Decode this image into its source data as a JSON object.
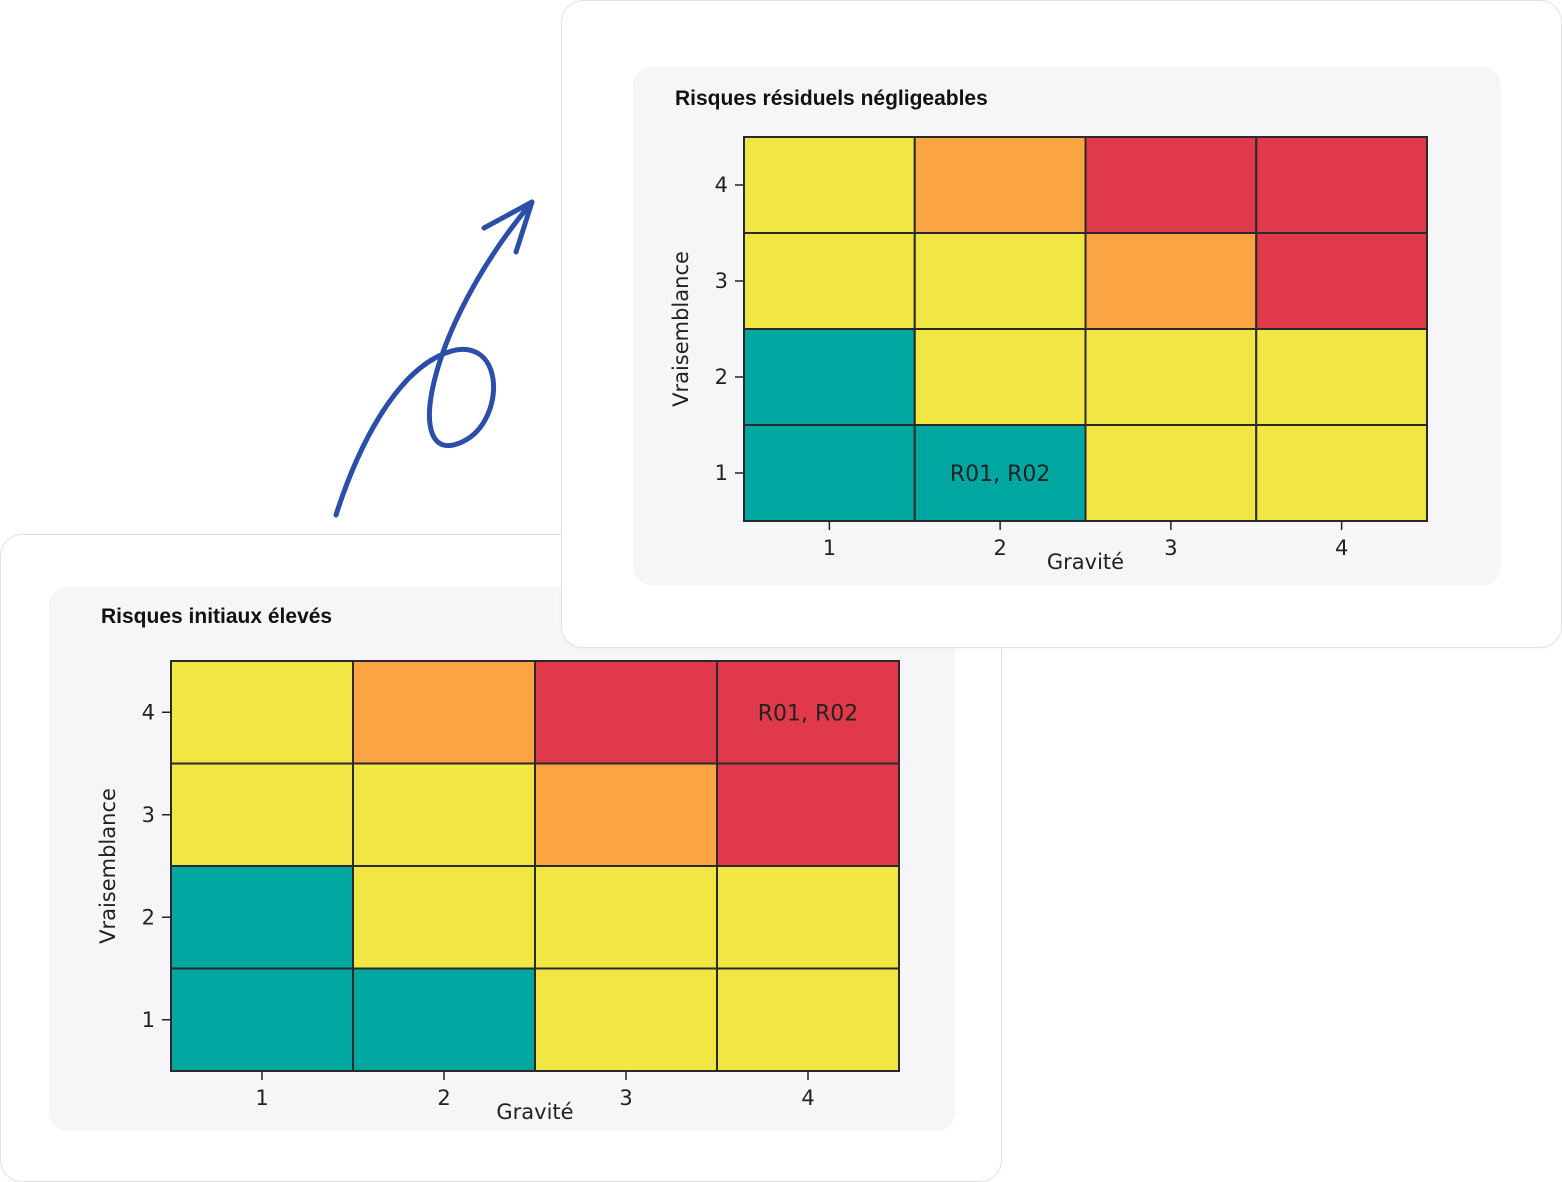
{
  "colors": {
    "teal": "#00a7a0",
    "yellow": "#f2e645",
    "orange": "#fba444",
    "red": "#e03a4a",
    "arrow": "#2b4fa8"
  },
  "decorations": {
    "arrow_icon": "curly-arrow-icon"
  },
  "chart_data": [
    {
      "type": "heatmap",
      "title": "Risques initiaux élevés",
      "xlabel": "Gravité",
      "ylabel": "Vraisemblance",
      "x_ticks": [
        "1",
        "2",
        "3",
        "4"
      ],
      "y_ticks": [
        "1",
        "2",
        "3",
        "4"
      ],
      "cell_colors": [
        [
          "yellow",
          "orange",
          "red",
          "red"
        ],
        [
          "yellow",
          "yellow",
          "orange",
          "red"
        ],
        [
          "teal",
          "yellow",
          "yellow",
          "yellow"
        ],
        [
          "teal",
          "teal",
          "yellow",
          "yellow"
        ]
      ],
      "annotations": [
        {
          "gravite": 4,
          "vraisemblance": 4,
          "text": "R01, R02"
        }
      ]
    },
    {
      "type": "heatmap",
      "title": "Risques résiduels négligeables",
      "xlabel": "Gravité",
      "ylabel": "Vraisemblance",
      "x_ticks": [
        "1",
        "2",
        "3",
        "4"
      ],
      "y_ticks": [
        "1",
        "2",
        "3",
        "4"
      ],
      "cell_colors": [
        [
          "yellow",
          "orange",
          "red",
          "red"
        ],
        [
          "yellow",
          "yellow",
          "orange",
          "red"
        ],
        [
          "teal",
          "yellow",
          "yellow",
          "yellow"
        ],
        [
          "teal",
          "teal",
          "yellow",
          "yellow"
        ]
      ],
      "annotations": [
        {
          "gravite": 2,
          "vraisemblance": 1,
          "text": "R01, R02"
        }
      ]
    }
  ]
}
